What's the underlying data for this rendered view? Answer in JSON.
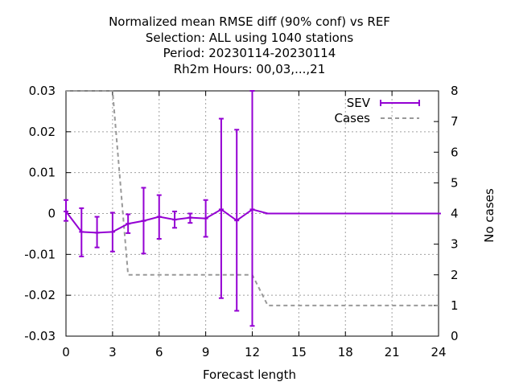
{
  "chart_data": {
    "type": "line",
    "title_lines": [
      "Normalized mean RMSE diff (90% conf) vs REF",
      "Selection: ALL using  1040 stations",
      "Period: 20230114-20230114",
      "Rh2m   Hours:  00,03,...,21"
    ],
    "xlabel": "Forecast length",
    "ylabel_right": "No cases",
    "xlim": [
      0,
      24
    ],
    "ylim_left": [
      -0.03,
      0.03
    ],
    "ylim_right": [
      0,
      8
    ],
    "x_ticks": [
      "0",
      "3",
      "6",
      "9",
      "12",
      "15",
      "18",
      "21",
      "24"
    ],
    "y_ticks_left": [
      "-0.03",
      "-0.02",
      "-0.01",
      "0",
      "0.01",
      "0.02",
      "0.03"
    ],
    "y_ticks_right": [
      "0",
      "1",
      "2",
      "3",
      "4",
      "5",
      "6",
      "7",
      "8"
    ],
    "grid": true,
    "legend_position": "top-right",
    "series": [
      {
        "name": "SEV",
        "axis": "left",
        "color": "#9400d3",
        "style": "line+errorbars",
        "x": [
          0,
          1,
          2,
          3,
          4,
          5,
          6,
          7,
          8,
          9,
          10,
          11,
          12,
          13,
          14,
          15,
          16,
          17,
          18,
          19,
          20,
          21,
          22,
          23,
          24
        ],
        "y": [
          0.0005,
          -0.0045,
          -0.0047,
          -0.0045,
          -0.0025,
          -0.0018,
          -0.0008,
          -0.0015,
          -0.001,
          -0.0012,
          0.001,
          -0.0017,
          0.001,
          0,
          0,
          0,
          0,
          0,
          0,
          0,
          0,
          0,
          0,
          0,
          0
        ],
        "err_low": [
          -0.0018,
          -0.0105,
          -0.0083,
          -0.0093,
          -0.0048,
          -0.0098,
          -0.0062,
          -0.0035,
          -0.0023,
          -0.0057,
          -0.0207,
          -0.0238,
          -0.0275,
          0,
          0,
          0,
          0,
          0,
          0,
          0,
          0,
          0,
          0,
          0,
          0
        ],
        "err_high": [
          0.0033,
          0.0013,
          -0.0008,
          0.0002,
          -0.0002,
          0.0063,
          0.0045,
          0.0005,
          0.0,
          0.0033,
          0.0232,
          0.0205,
          0.03,
          0,
          0,
          0,
          0,
          0,
          0,
          0,
          0,
          0,
          0,
          0,
          0
        ]
      },
      {
        "name": "Cases",
        "axis": "right",
        "color": "#999999",
        "style": "dashed",
        "x": [
          0,
          1,
          2,
          3,
          4,
          5,
          6,
          7,
          8,
          9,
          10,
          11,
          12,
          13,
          14,
          15,
          16,
          17,
          18,
          19,
          20,
          21,
          22,
          23,
          24
        ],
        "y": [
          8,
          8,
          8,
          8,
          2,
          2,
          2,
          2,
          2,
          2,
          2,
          2,
          2,
          1,
          1,
          1,
          1,
          1,
          1,
          1,
          1,
          1,
          1,
          1,
          1
        ]
      }
    ]
  }
}
